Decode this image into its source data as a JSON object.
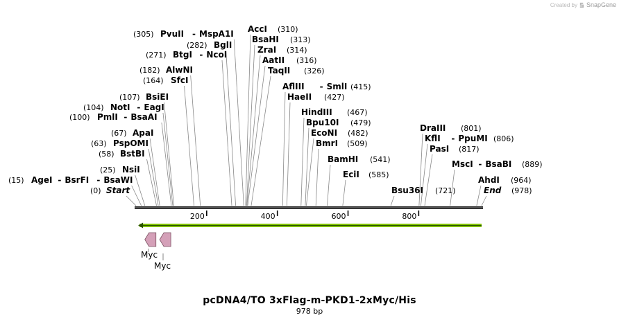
{
  "credit": {
    "prefix": "Created by",
    "brand": "SnapGene",
    "icon": "snapgene-logo-icon"
  },
  "plasmid": {
    "name": "pcDNA4/TO 3xFlag-m-PKD1-2xMyc/His",
    "length_label": "978 bp",
    "length": 978
  },
  "ruler": {
    "ticks": [
      {
        "pos": 200,
        "label": "200"
      },
      {
        "pos": 400,
        "label": "400"
      },
      {
        "pos": 600,
        "label": "600"
      },
      {
        "pos": 800,
        "label": "800"
      }
    ]
  },
  "colors": {
    "arrow": "#80c000",
    "arrow_outline": "#2a5200",
    "feature": "#d4a0b8",
    "feature_outline": "#7a5060",
    "line": "#888888"
  },
  "sites": [
    {
      "pos": 0,
      "pos_label": "(0)",
      "names": [
        "Start"
      ],
      "italic": true
    },
    {
      "pos": 15,
      "pos_label": "(15)",
      "names": [
        "AgeI",
        "BsrFI",
        "BsaWI"
      ]
    },
    {
      "pos": 25,
      "pos_label": "(25)",
      "names": [
        "NsiI"
      ]
    },
    {
      "pos": 58,
      "pos_label": "(58)",
      "names": [
        "BstBI"
      ]
    },
    {
      "pos": 63,
      "pos_label": "(63)",
      "names": [
        "PspOMI"
      ]
    },
    {
      "pos": 67,
      "pos_label": "(67)",
      "names": [
        "ApaI"
      ]
    },
    {
      "pos": 100,
      "pos_label": "(100)",
      "names": [
        "PmlI",
        "BsaAI"
      ]
    },
    {
      "pos": 104,
      "pos_label": "(104)",
      "names": [
        "NotI",
        "EagI"
      ]
    },
    {
      "pos": 107,
      "pos_label": "(107)",
      "names": [
        "BsiEI"
      ]
    },
    {
      "pos": 164,
      "pos_label": "(164)",
      "names": [
        "SfcI"
      ]
    },
    {
      "pos": 182,
      "pos_label": "(182)",
      "names": [
        "AlwNI"
      ]
    },
    {
      "pos": 271,
      "pos_label": "(271)",
      "names": [
        "BtgI",
        "NcoI"
      ]
    },
    {
      "pos": 282,
      "pos_label": "(282)",
      "names": [
        "BglI"
      ]
    },
    {
      "pos": 305,
      "pos_label": "(305)",
      "names": [
        "PvuII",
        "MspA1I"
      ]
    },
    {
      "pos": 310,
      "pos_label": "(310)",
      "names": [
        "AccI"
      ]
    },
    {
      "pos": 313,
      "pos_label": "(313)",
      "names": [
        "BsaHI"
      ]
    },
    {
      "pos": 314,
      "pos_label": "(314)",
      "names": [
        "ZraI"
      ]
    },
    {
      "pos": 316,
      "pos_label": "(316)",
      "names": [
        "AatII"
      ]
    },
    {
      "pos": 326,
      "pos_label": "(326)",
      "names": [
        "TaqII"
      ]
    },
    {
      "pos": 415,
      "pos_label": "(415)",
      "names": [
        "AflIII",
        "SmlI"
      ]
    },
    {
      "pos": 427,
      "pos_label": "(427)",
      "names": [
        "HaeII"
      ]
    },
    {
      "pos": 467,
      "pos_label": "(467)",
      "names": [
        "HindIII"
      ]
    },
    {
      "pos": 479,
      "pos_label": "(479)",
      "names": [
        "Bpu10I"
      ]
    },
    {
      "pos": 482,
      "pos_label": "(482)",
      "names": [
        "EcoNI"
      ]
    },
    {
      "pos": 509,
      "pos_label": "(509)",
      "names": [
        "BmrI"
      ]
    },
    {
      "pos": 541,
      "pos_label": "(541)",
      "names": [
        "BamHI"
      ]
    },
    {
      "pos": 585,
      "pos_label": "(585)",
      "names": [
        "EciI"
      ]
    },
    {
      "pos": 721,
      "pos_label": "(721)",
      "names": [
        "Bsu36I"
      ]
    },
    {
      "pos": 801,
      "pos_label": "(801)",
      "names": [
        "DraIII"
      ]
    },
    {
      "pos": 806,
      "pos_label": "(806)",
      "names": [
        "KflI",
        "PpuMI"
      ]
    },
    {
      "pos": 817,
      "pos_label": "(817)",
      "names": [
        "PasI"
      ]
    },
    {
      "pos": 889,
      "pos_label": "(889)",
      "names": [
        "MscI",
        "BsaBI"
      ]
    },
    {
      "pos": 964,
      "pos_label": "(964)",
      "names": [
        "AhdI"
      ]
    },
    {
      "pos": 978,
      "pos_label": "(978)",
      "names": [
        "End"
      ],
      "italic": true
    }
  ],
  "features": [
    {
      "name": "Myc",
      "start": 25,
      "end": 58,
      "direction": "reverse"
    },
    {
      "name": "Myc",
      "start": 67,
      "end": 100,
      "direction": "reverse"
    }
  ],
  "orf": {
    "start": 10,
    "end": 978,
    "direction": "reverse"
  }
}
